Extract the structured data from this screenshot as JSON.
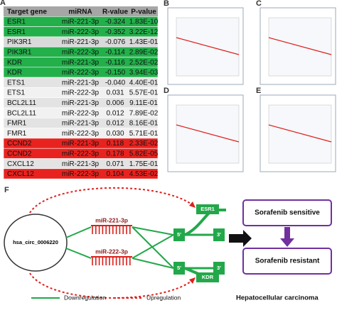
{
  "panel_a": {
    "label": "A",
    "header": [
      "Target gene",
      "miRNA",
      "R-value",
      "P-value"
    ],
    "rows": [
      {
        "cells": [
          "ESR1",
          "miR-221-3p",
          "-0.324",
          "1.83E-10"
        ],
        "color": "#23b04b"
      },
      {
        "cells": [
          "ESR1",
          "miR-222-3p",
          "-0.352",
          "3.22E-12"
        ],
        "color": "#23b04b"
      },
      {
        "cells": [
          "PIK3R1",
          "miR-221-3p",
          "-0.076",
          "1.43E-01"
        ],
        "color": "#d9d9d9"
      },
      {
        "cells": [
          "PIK3R1",
          "miR-222-3p",
          "-0.114",
          "2.89E-02"
        ],
        "color": "#23b04b"
      },
      {
        "cells": [
          "KDR",
          "miR-221-3p",
          "-0.116",
          "2.52E-02"
        ],
        "color": "#23b04b"
      },
      {
        "cells": [
          "KDR",
          "miR-222-3p",
          "-0.150",
          "3.94E-03"
        ],
        "color": "#23b04b"
      },
      {
        "cells": [
          "ETS1",
          "miR-221-3p",
          "-0.040",
          "4.40E-01"
        ],
        "color": "#e3e3e3"
      },
      {
        "cells": [
          "ETS1",
          "miR-222-3p",
          "0.031",
          "5.57E-01"
        ],
        "color": "#f1f1f1"
      },
      {
        "cells": [
          "BCL2L11",
          "miR-221-3p",
          "0.006",
          "9.11E-01"
        ],
        "color": "#e3e3e3"
      },
      {
        "cells": [
          "BCL2L11",
          "miR-222-3p",
          "0.012",
          "7.89E-02"
        ],
        "color": "#f1f1f1"
      },
      {
        "cells": [
          "FMR1",
          "miR-221-3p",
          "0.012",
          "8.16E-01"
        ],
        "color": "#e3e3e3"
      },
      {
        "cells": [
          "FMR1",
          "miR-222-3p",
          "0.030",
          "5.71E-01"
        ],
        "color": "#f1f1f1"
      },
      {
        "cells": [
          "CCND2",
          "miR-221-3p",
          "0.118",
          "2.33E-02"
        ],
        "color": "#e8231f"
      },
      {
        "cells": [
          "CCND2",
          "miR-222-3p",
          "0.178",
          "5.82E-05"
        ],
        "color": "#e8231f"
      },
      {
        "cells": [
          "CXCL12",
          "miR-221-3p",
          "0.071",
          "1.75E-01"
        ],
        "color": "#e3e3e3"
      },
      {
        "cells": [
          "CXCL12",
          "miR-222-3p",
          "0.104",
          "4.53E-02"
        ],
        "color": "#e8231f"
      }
    ]
  },
  "scatter_panels": [
    "B",
    "C",
    "D",
    "E"
  ],
  "panel_f": {
    "label": "F",
    "circ": "hsa_circ_0006220",
    "mirna": [
      "miR-221-3p",
      "miR-222-3p"
    ],
    "genes": [
      {
        "name": "ESR1",
        "five": "5'",
        "three": "3'"
      },
      {
        "name": "KDR",
        "five": "5'",
        "three": "3'"
      }
    ],
    "outcomes": [
      "Sorafenib sensitive",
      "Sorafenib resistant"
    ],
    "legend": [
      "Downregulation",
      "Upregulation"
    ],
    "context": "Hepatocellular carcinoma"
  }
}
